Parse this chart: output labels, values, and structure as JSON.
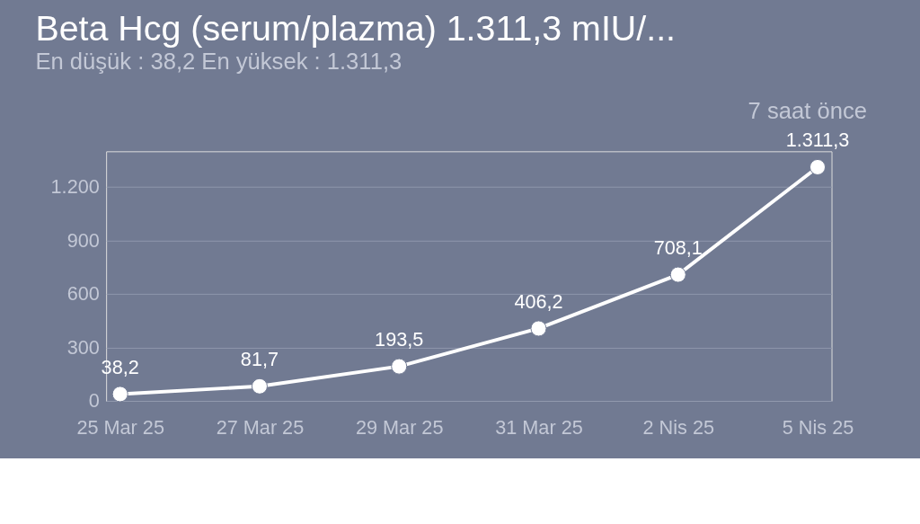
{
  "chart_data": {
    "type": "line",
    "title": "Beta Hcg (serum/plazma)  1.311,3 mIU/...",
    "subtitle": "En düşük : 38,2 En yüksek : 1.311,3",
    "annotations": [
      "7 saat önce"
    ],
    "categories": [
      "25 Mar 25",
      "27 Mar 25",
      "29 Mar 25",
      "31 Mar 25",
      "2 Nis 25",
      "5 Nis 25"
    ],
    "series": [
      {
        "color": "#ffffff",
        "values": [
          38.2,
          81.7,
          193.5,
          406.2,
          708.1,
          1311.3
        ],
        "value_labels": [
          "38,2",
          "81,7",
          "193,5",
          "406,2",
          "708,1",
          "1.311,3"
        ]
      }
    ],
    "ylim": [
      0,
      1400
    ],
    "yticks": [
      0,
      300,
      600,
      900,
      {
        "value": 1200,
        "label": "1.200"
      }
    ],
    "grid": "y",
    "marker": "circle",
    "line_style": "solid"
  }
}
